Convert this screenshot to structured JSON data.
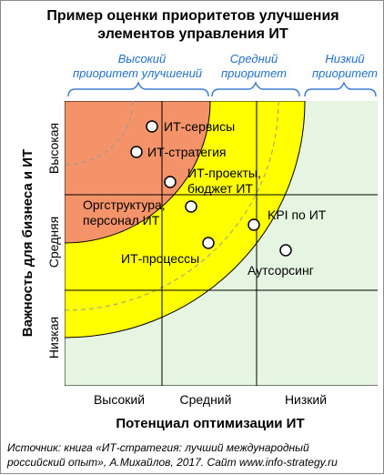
{
  "title": {
    "line1": "Пример оценки приоритетов улучшения",
    "line2": "элементов управления ИТ"
  },
  "priorities": {
    "high": {
      "line1": "Высокий",
      "line2": "приоритет улучшений"
    },
    "medium": {
      "line1": "Средний",
      "line2": "приоритет"
    },
    "low": {
      "line1": "Низкий",
      "line2": "приоритет"
    }
  },
  "y_axis": {
    "label": "Важность для бизнеса и ИТ",
    "ticks": [
      "Высокая",
      "Средняя",
      "Низкая"
    ]
  },
  "x_axis": {
    "label": "Потенциал оптимизации ИТ",
    "ticks": [
      "Высокий",
      "Средний",
      "Низкий"
    ]
  },
  "items": [
    {
      "label": "ИТ-сервисы"
    },
    {
      "label": "ИТ-стратегия"
    },
    {
      "label": "ИТ-проекты,",
      "label2": "бюджет ИТ"
    },
    {
      "label": "Оргструктура,",
      "label2": "персонал ИТ"
    },
    {
      "label": "KPI по ИТ"
    },
    {
      "label": "ИТ-процессы"
    },
    {
      "label": "Аутсорсинг"
    }
  ],
  "source": {
    "line1": "Источник: книга «ИТ-стратегия: лучший международный",
    "line2": "российский опыт», А.Михайлов, 2017.   Сайт www.info-strategy.ru"
  },
  "colors": {
    "grid_bg": "#e6f5e1",
    "high_zone": "#f4936a",
    "medium_zone": "#ffff00",
    "accent_text": "#1f6fd1",
    "brace": "#3f7fd0",
    "grid_lines": "#000000"
  }
}
